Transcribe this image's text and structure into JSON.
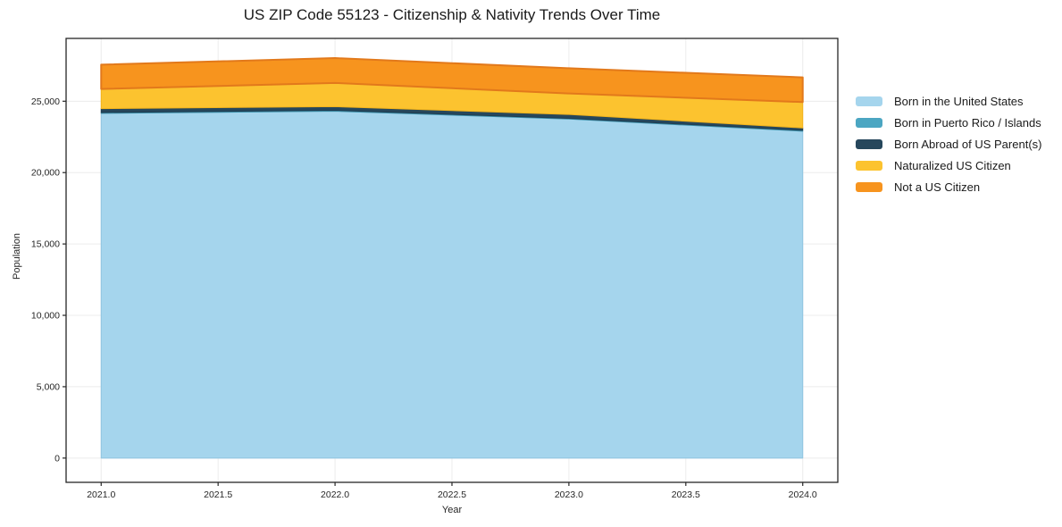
{
  "page": {
    "background": "#ffffff"
  },
  "chart_data": {
    "type": "area",
    "stacked": true,
    "title": "US ZIP Code 55123 - Citizenship & Nativity Trends Over Time",
    "xlabel": "Year",
    "ylabel": "Population",
    "x": [
      2021,
      2022,
      2023,
      2024
    ],
    "series": [
      {
        "name": "Born in the United States",
        "values": [
          24150,
          24300,
          23750,
          22900
        ],
        "color": "#A5D5ED",
        "edge": "#8FC4E0",
        "edge_width": 1
      },
      {
        "name": "Born in Puerto Rico / Islands",
        "values": [
          60,
          60,
          50,
          60
        ],
        "color": "#4BA6C2",
        "edge": "#3E93AD",
        "edge_width": 1
      },
      {
        "name": "Born Abroad of US Parent(s)",
        "values": [
          270,
          260,
          270,
          170
        ],
        "color": "#26475C",
        "edge": "#1F3D51",
        "edge_width": 1
      },
      {
        "name": "Naturalized US Citizen",
        "values": [
          1380,
          1660,
          1470,
          1810
        ],
        "color": "#FCC32F",
        "edge": "#F2B31C",
        "edge_width": 1
      },
      {
        "name": "Not a US Citizen",
        "values": [
          1700,
          1740,
          1770,
          1730
        ],
        "color": "#F7941E",
        "edge": "#E2791B",
        "edge_width": 2
      }
    ],
    "totals": [
      27560,
      28020,
      27310,
      26670
    ],
    "xlim": [
      2020.85,
      2024.15
    ],
    "ylim": [
      -1700,
      29400
    ],
    "x_ticks": [
      {
        "v": 2021.0,
        "label": "2021.0"
      },
      {
        "v": 2021.5,
        "label": "2021.5"
      },
      {
        "v": 2022.0,
        "label": "2022.0"
      },
      {
        "v": 2022.5,
        "label": "2022.5"
      },
      {
        "v": 2023.0,
        "label": "2023.0"
      },
      {
        "v": 2023.5,
        "label": "2023.5"
      },
      {
        "v": 2024.0,
        "label": "2024.0"
      }
    ],
    "y_ticks": [
      {
        "v": 0,
        "label": "0"
      },
      {
        "v": 5000,
        "label": "5,000"
      },
      {
        "v": 10000,
        "label": "10,000"
      },
      {
        "v": 15000,
        "label": "15,000"
      },
      {
        "v": 20000,
        "label": "20,000"
      },
      {
        "v": 25000,
        "label": "25,000"
      }
    ],
    "grid": true,
    "legend_position": "right-outside",
    "colors": {
      "axis": "#262626",
      "grid": "#ececec",
      "text": "#1a1a1a"
    }
  }
}
